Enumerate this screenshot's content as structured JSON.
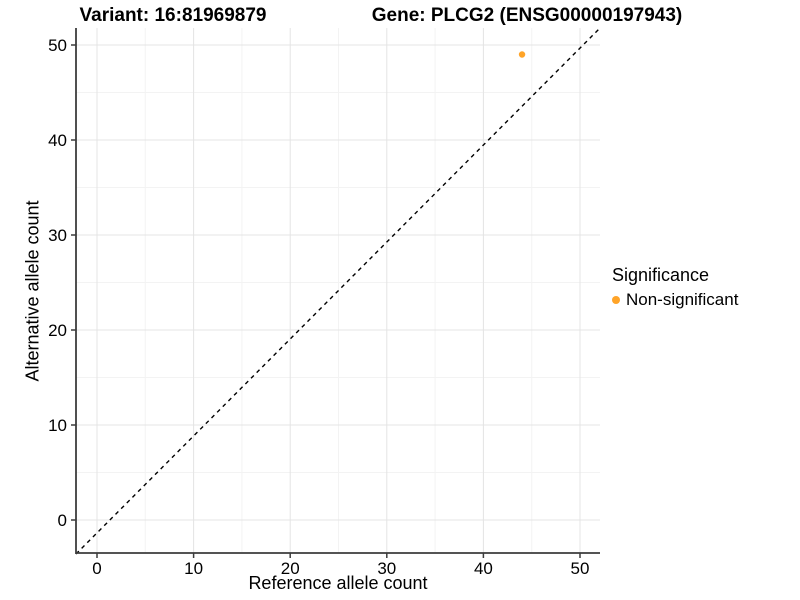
{
  "titles": {
    "variant": "Variant: 16:81969879",
    "gene": "Gene: PLCG2 (ENSG00000197943)"
  },
  "legend": {
    "title": "Significance",
    "items": [
      {
        "label": "Non-significant",
        "color": "#FFA428"
      }
    ]
  },
  "chart_data": {
    "type": "scatter",
    "title": "Variant: 16:81969879 | Gene: PLCG2 (ENSG00000197943)",
    "xlabel": "Reference allele count",
    "ylabel": "Alternative allele count",
    "xlim": [
      -2.5,
      52.5
    ],
    "ylim": [
      -2.5,
      52.5
    ],
    "x_ticks": [
      0,
      10,
      20,
      30,
      40,
      50
    ],
    "y_ticks": [
      0,
      10,
      20,
      30,
      40,
      50
    ],
    "grid": "major+minor",
    "legend_position": "right",
    "legend_title": "Significance",
    "series": [
      {
        "name": "Non-significant",
        "color": "#FFA428",
        "points": [
          {
            "x": 44,
            "y": 49
          }
        ]
      }
    ],
    "reference_line": {
      "type": "identity",
      "slope": 1,
      "intercept": 0,
      "style": "dashed",
      "color": "#000000"
    }
  },
  "colors": {
    "background": "#ffffff",
    "grid_major": "#e4e4e4",
    "grid_minor": "#f3f3f3",
    "axis_line": "#3c3c3c",
    "point": "#FFA428",
    "text": "#000000"
  }
}
